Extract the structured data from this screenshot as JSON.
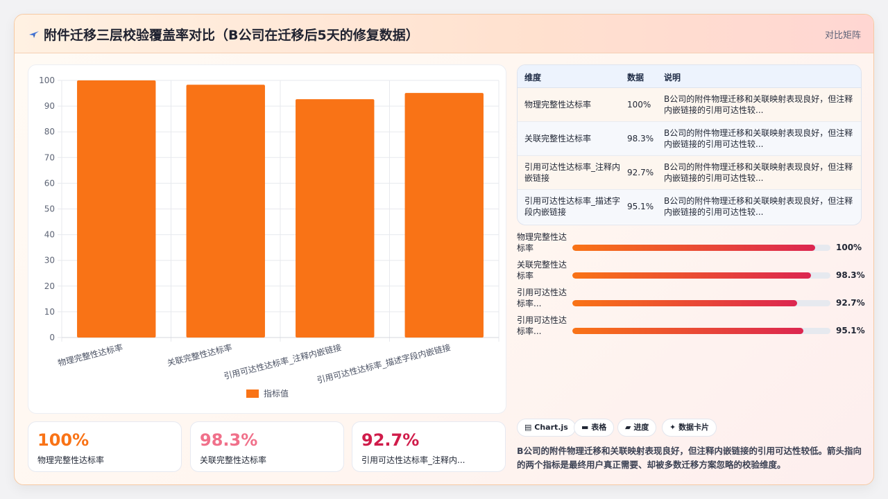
{
  "header": {
    "title": "附件迁移三层校验覆盖率对比（B公司在迁移后5天的修复数据）",
    "tag": "对比矩阵"
  },
  "colors": {
    "bar": "#f97316",
    "accent_red": "#dc2650",
    "kpi1": "#f97316",
    "kpi2": "#f0708a",
    "kpi3": "#d01c4a"
  },
  "chart_data": {
    "type": "bar",
    "categories": [
      "物理完整性达标率",
      "关联完整性达标率",
      "引用可达性达标率_注释内嵌链接",
      "引用可达性达标率_描述字段内嵌链接"
    ],
    "series": [
      {
        "name": "指标值",
        "values": [
          100,
          98.3,
          92.7,
          95.1
        ]
      }
    ],
    "yticks": [
      "0",
      "10",
      "20",
      "30",
      "40",
      "50",
      "60",
      "70",
      "80",
      "90",
      "100"
    ],
    "ylim": [
      0,
      100
    ],
    "grid": true,
    "legend_position": "bottom"
  },
  "table": {
    "headers": [
      "维度",
      "数据",
      "说明"
    ],
    "rows": [
      {
        "dim": "物理完整性达标率",
        "value": "100%",
        "desc": "B公司的附件物理迁移和关联映射表现良好，但注释内嵌链接的引用可达性较..."
      },
      {
        "dim": "关联完整性达标率",
        "value": "98.3%",
        "desc": "B公司的附件物理迁移和关联映射表现良好，但注释内嵌链接的引用可达性较..."
      },
      {
        "dim": "引用可达性达标率_注释内嵌链接",
        "value": "92.7%",
        "desc": "B公司的附件物理迁移和关联映射表现良好，但注释内嵌链接的引用可达性较..."
      },
      {
        "dim": "引用可达性达标率_描述字段内嵌链接",
        "value": "95.1%",
        "desc": "B公司的附件物理迁移和关联映射表现良好，但注释内嵌链接的引用可达性较..."
      }
    ]
  },
  "progress": [
    {
      "label": "物理完整性达标率",
      "value": 100,
      "display": "100%"
    },
    {
      "label": "关联完整性达标率",
      "value": 98.3,
      "display": "98.3%"
    },
    {
      "label": "引用可达性达标率...",
      "value": 92.7,
      "display": "92.7%"
    },
    {
      "label": "引用可达性达标率...",
      "value": 95.1,
      "display": "95.1%"
    }
  ],
  "kpis": [
    {
      "value": "100%",
      "label": "物理完整性达标率"
    },
    {
      "value": "98.3%",
      "label": "关联完整性达标率"
    },
    {
      "value": "92.7%",
      "label": "引用可达性达标率_注释内..."
    }
  ],
  "chips": [
    {
      "icon": "chart-icon",
      "glyph": "▤",
      "label": "Chart.js"
    },
    {
      "icon": "table-icon",
      "glyph": "▬",
      "label": "表格"
    },
    {
      "icon": "progress-icon",
      "glyph": "▰",
      "label": "进度"
    },
    {
      "icon": "card-icon",
      "glyph": "✦",
      "label": "数据卡片"
    }
  ],
  "note": "B公司的附件物理迁移和关联映射表现良好，但注释内嵌链接的引用可达性较低。箭头指向的两个指标是最终用户真正需要、却被多数迁移方案忽略的校验维度。"
}
